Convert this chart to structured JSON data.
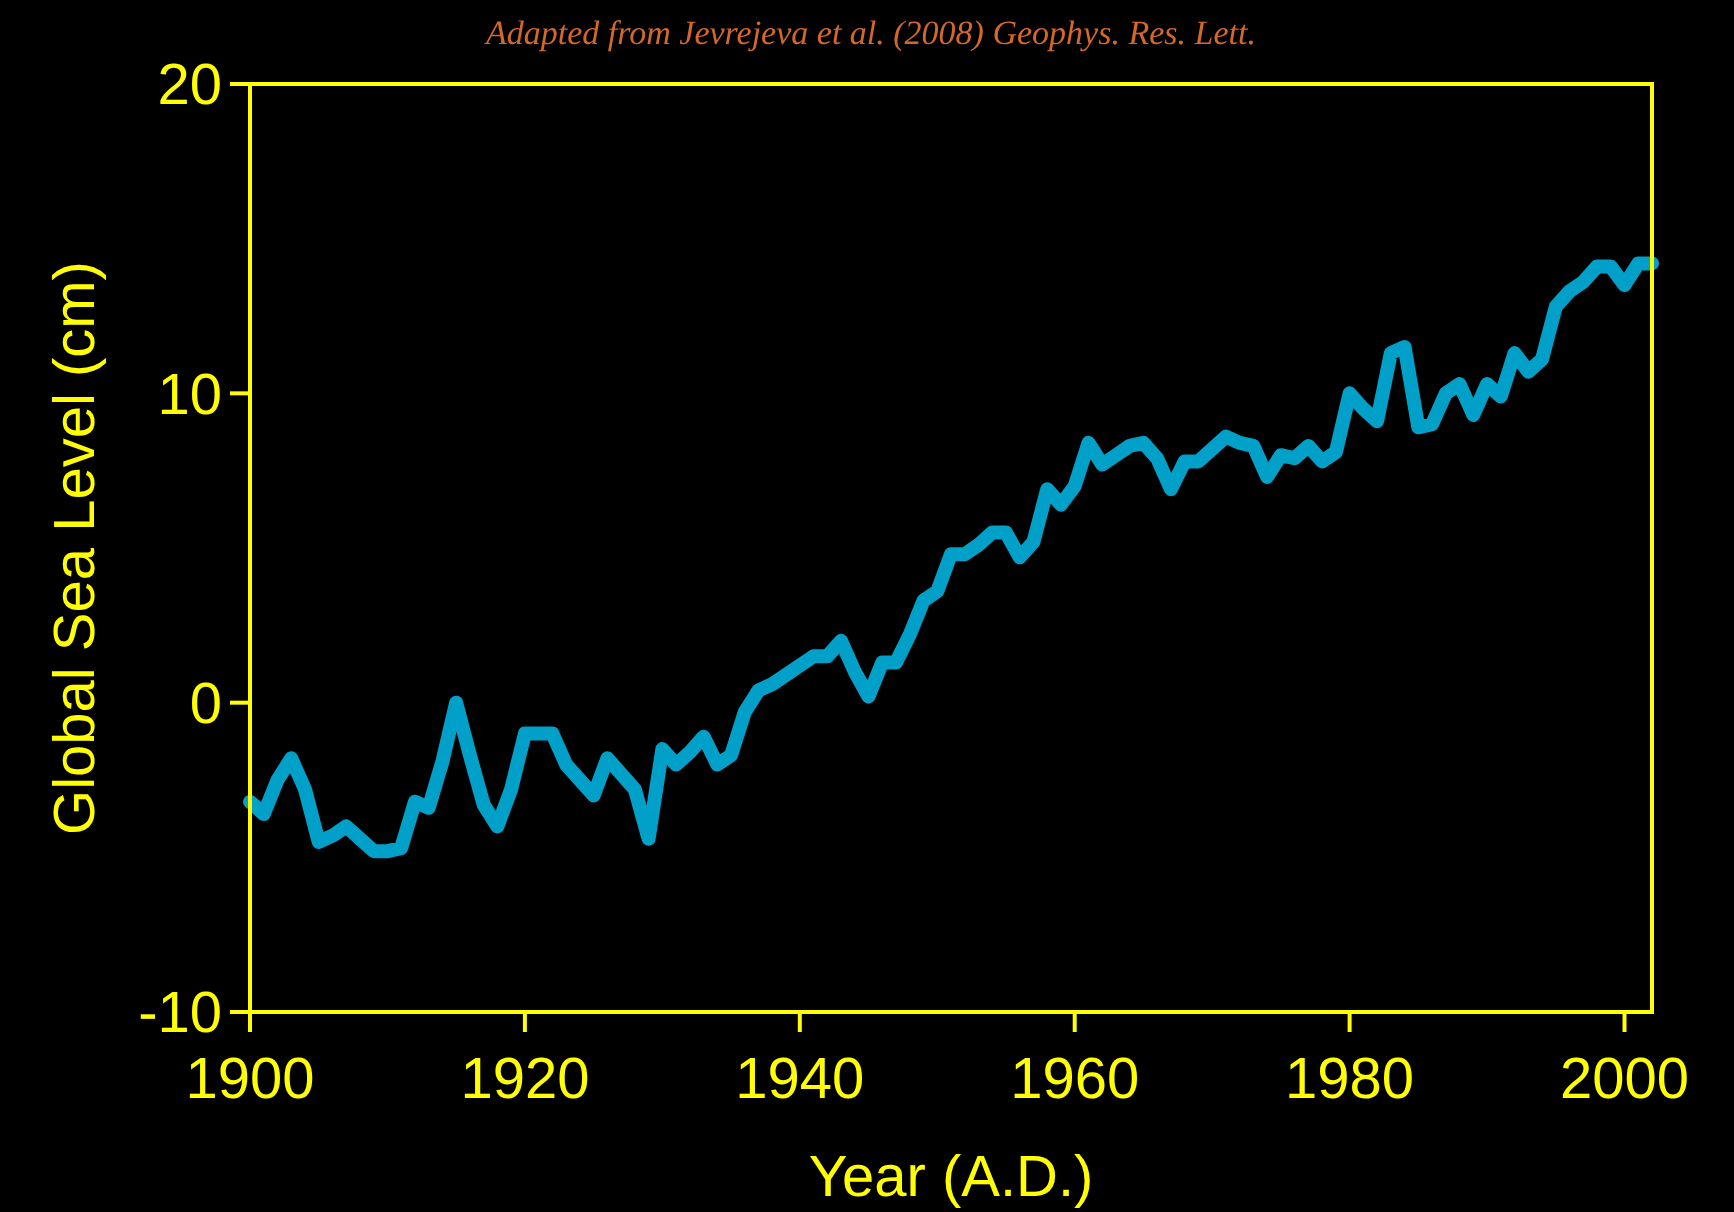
{
  "chart_data": {
    "type": "line",
    "xlabel": "Year (A.D.)",
    "ylabel": "Global Sea Level (cm)",
    "annotations": [
      "Adapted from Jevrejeva et al. (2008) Geophys. Res. Lett."
    ],
    "x": [
      1900,
      1901,
      1902,
      1903,
      1904,
      1905,
      1906,
      1907,
      1908,
      1909,
      1910,
      1911,
      1912,
      1913,
      1914,
      1915,
      1916,
      1917,
      1918,
      1919,
      1920,
      1921,
      1922,
      1923,
      1924,
      1925,
      1926,
      1927,
      1928,
      1929,
      1930,
      1931,
      1932,
      1933,
      1934,
      1935,
      1936,
      1937,
      1938,
      1939,
      1940,
      1941,
      1942,
      1943,
      1944,
      1945,
      1946,
      1947,
      1948,
      1949,
      1950,
      1951,
      1952,
      1953,
      1954,
      1955,
      1956,
      1957,
      1958,
      1959,
      1960,
      1961,
      1962,
      1963,
      1964,
      1965,
      1966,
      1967,
      1968,
      1969,
      1970,
      1971,
      1972,
      1973,
      1974,
      1975,
      1976,
      1977,
      1978,
      1979,
      1980,
      1981,
      1982,
      1983,
      1984,
      1985,
      1986,
      1987,
      1988,
      1989,
      1990,
      1991,
      1992,
      1993,
      1994,
      1995,
      1996,
      1997,
      1998,
      1999,
      2000,
      2001,
      2002
    ],
    "series": [
      {
        "color": "#00a0c8",
        "values": [
          -3.2,
          -3.6,
          -2.5,
          -1.8,
          -2.8,
          -4.5,
          -4.3,
          -4.0,
          -4.4,
          -4.8,
          -4.8,
          -4.7,
          -3.2,
          -3.4,
          -1.9,
          0,
          -1.7,
          -3.3,
          -4.0,
          -2.8,
          -1.0,
          -1.0,
          -1.0,
          -2.0,
          -2.5,
          -3.0,
          -1.8,
          -2.3,
          -2.8,
          -4.4,
          -1.5,
          -2.0,
          -1.6,
          -1.1,
          -2.0,
          -1.7,
          -0.3,
          0.4,
          0.6,
          0.9,
          1.2,
          1.5,
          1.5,
          2.0,
          1.0,
          0.2,
          1.3,
          1.3,
          2.2,
          3.3,
          3.6,
          4.8,
          4.8,
          5.1,
          5.5,
          5.5,
          4.7,
          5.2,
          6.9,
          6.4,
          7.0,
          8.4,
          7.7,
          8.0,
          8.3,
          8.4,
          7.9,
          6.9,
          7.8,
          7.8,
          8.2,
          8.6,
          8.4,
          8.3,
          7.3,
          8.0,
          7.9,
          8.3,
          7.8,
          8.1,
          10.0,
          9.5,
          9.1,
          11.3,
          11.5,
          8.9,
          9.0,
          10.0,
          10.3,
          9.3,
          10.3,
          9.9,
          11.3,
          10.7,
          11.1,
          12.8,
          13.3,
          13.6,
          14.1,
          14.1,
          13.5,
          14.2,
          14.2
        ]
      }
    ],
    "xlim": [
      1900,
      2002
    ],
    "xticks": [
      1900,
      1920,
      1940,
      1960,
      1980,
      2000
    ],
    "ylim": [
      -10,
      20
    ],
    "yticks": [
      -10,
      0,
      10,
      20
    ],
    "grid": false,
    "marker": "none",
    "line_style": "solid"
  }
}
